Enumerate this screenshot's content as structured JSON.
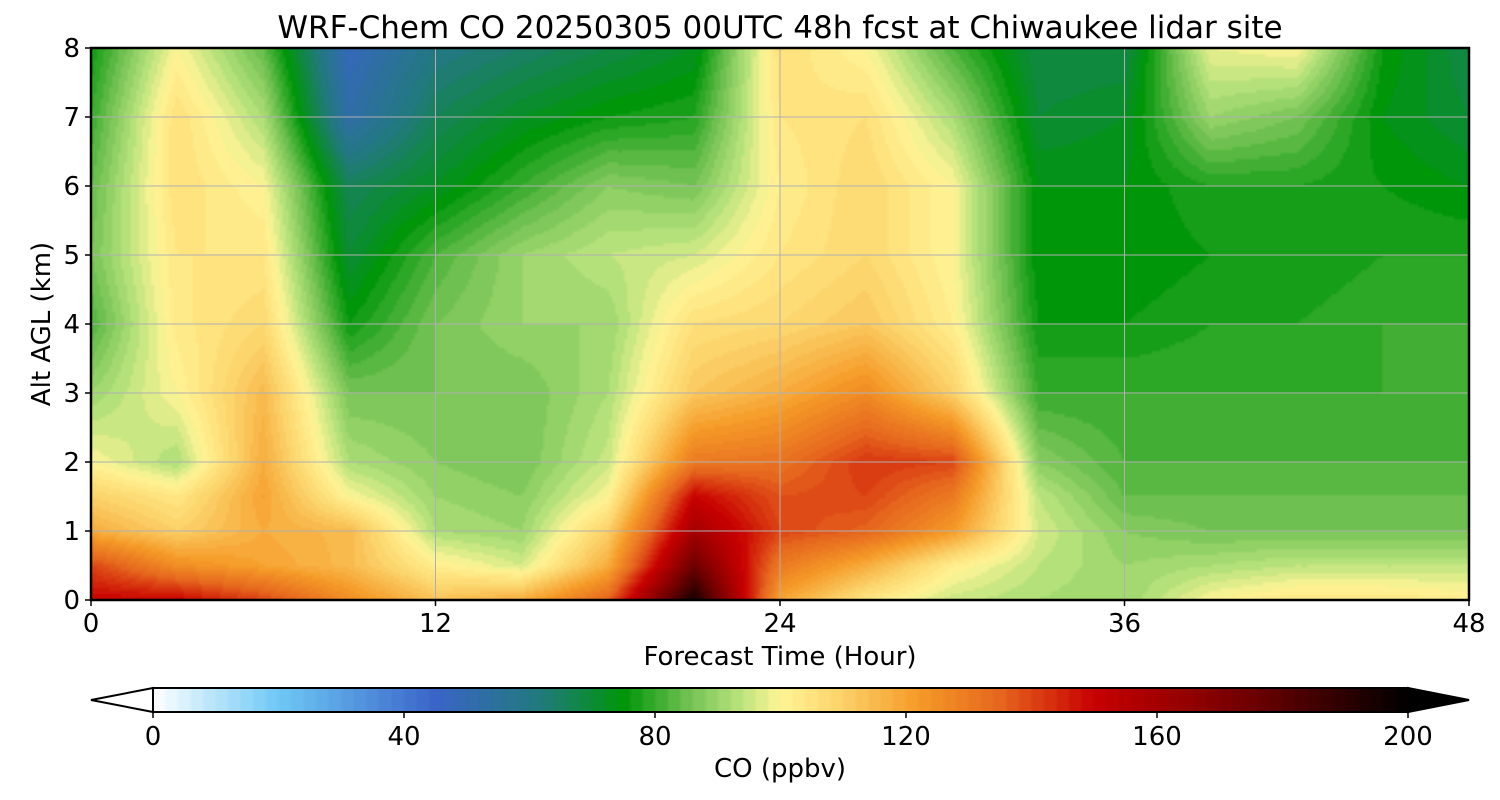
{
  "chart_data": {
    "type": "heatmap",
    "title": "WRF-Chem CO  20250305 00UTC 48h fcst at Chiwaukee lidar site",
    "xlabel": "Forecast Time (Hour)",
    "ylabel": "Alt AGL (km)",
    "xlim": [
      0,
      48
    ],
    "ylim": [
      0,
      8
    ],
    "x_ticks": [
      0,
      12,
      24,
      36,
      48
    ],
    "y_ticks": [
      0,
      1,
      2,
      3,
      4,
      5,
      6,
      7,
      8
    ],
    "grid": true,
    "x": [
      0,
      3,
      6,
      9,
      12,
      15,
      18,
      21,
      24,
      27,
      30,
      33,
      36,
      39,
      42,
      45,
      48
    ],
    "y": [
      0,
      0.5,
      1,
      1.5,
      2,
      3,
      4,
      5,
      6,
      7,
      8
    ],
    "values": [
      [
        150,
        150,
        140,
        125,
        113,
        118,
        135,
        195,
        120,
        104,
        95,
        92,
        90,
        100,
        104,
        104,
        102
      ],
      [
        140,
        125,
        120,
        115,
        102,
        96,
        118,
        175,
        130,
        118,
        102,
        94,
        90,
        92,
        94,
        94,
        94
      ],
      [
        118,
        110,
        118,
        115,
        92,
        90,
        110,
        160,
        140,
        135,
        122,
        96,
        88,
        86,
        86,
        86,
        86
      ],
      [
        110,
        104,
        120,
        100,
        90,
        88,
        100,
        150,
        138,
        140,
        130,
        94,
        84,
        84,
        84,
        84,
        84
      ],
      [
        100,
        92,
        118,
        92,
        88,
        86,
        95,
        130,
        132,
        142,
        140,
        88,
        82,
        82,
        82,
        82,
        82
      ],
      [
        90,
        100,
        115,
        86,
        86,
        86,
        92,
        112,
        118,
        126,
        110,
        80,
        80,
        80,
        80,
        80,
        80
      ],
      [
        82,
        103,
        108,
        76,
        86,
        90,
        90,
        106,
        108,
        112,
        102,
        76,
        76,
        78,
        78,
        80,
        80
      ],
      [
        86,
        104,
        104,
        70,
        82,
        90,
        94,
        96,
        104,
        108,
        100,
        74,
        74,
        76,
        76,
        78,
        78
      ],
      [
        84,
        106,
        100,
        66,
        72,
        80,
        88,
        86,
        102,
        108,
        100,
        74,
        74,
        78,
        78,
        76,
        74
      ],
      [
        80,
        106,
        92,
        52,
        66,
        72,
        76,
        78,
        104,
        106,
        92,
        70,
        72,
        90,
        86,
        74,
        70
      ],
      [
        76,
        100,
        84,
        48,
        60,
        64,
        68,
        72,
        106,
        100,
        82,
        68,
        68,
        98,
        100,
        76,
        68
      ]
    ],
    "colorbar": {
      "label": "CO  (ppbv)",
      "min": 0,
      "max": 200,
      "ticks": [
        0,
        40,
        80,
        120,
        160,
        200
      ],
      "extend": "both",
      "stops": [
        {
          "v": 0,
          "c": "#ffffff"
        },
        {
          "v": 20,
          "c": "#6ec8f5"
        },
        {
          "v": 45,
          "c": "#3a64c8"
        },
        {
          "v": 62,
          "c": "#207a7a"
        },
        {
          "v": 75,
          "c": "#00960a"
        },
        {
          "v": 85,
          "c": "#6ec050"
        },
        {
          "v": 93,
          "c": "#b4e17a"
        },
        {
          "v": 100,
          "c": "#fff596"
        },
        {
          "v": 110,
          "c": "#fcd168"
        },
        {
          "v": 122,
          "c": "#f59a28"
        },
        {
          "v": 135,
          "c": "#e6661e"
        },
        {
          "v": 150,
          "c": "#c80000"
        },
        {
          "v": 175,
          "c": "#6e0000"
        },
        {
          "v": 200,
          "c": "#000000"
        }
      ],
      "under_color": "#ffffff",
      "over_color": "#000000"
    }
  }
}
